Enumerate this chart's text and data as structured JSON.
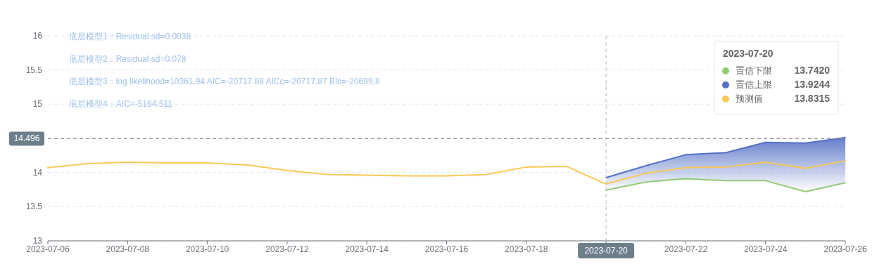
{
  "chart_data": {
    "type": "line",
    "x": [
      "2023-07-06",
      "2023-07-07",
      "2023-07-08",
      "2023-07-09",
      "2023-07-10",
      "2023-07-11",
      "2023-07-12",
      "2023-07-13",
      "2023-07-14",
      "2023-07-15",
      "2023-07-16",
      "2023-07-17",
      "2023-07-18",
      "2023-07-19",
      "2023-07-20",
      "2023-07-21",
      "2023-07-22",
      "2023-07-23",
      "2023-07-24",
      "2023-07-25",
      "2023-07-26"
    ],
    "series": [
      {
        "name": "置信下限",
        "color": "#91cc75",
        "x": [
          "2023-07-20",
          "2023-07-21",
          "2023-07-22",
          "2023-07-23",
          "2023-07-24",
          "2023-07-25",
          "2023-07-26"
        ],
        "values": [
          13.742,
          13.86,
          13.91,
          13.88,
          13.88,
          13.72,
          13.85
        ]
      },
      {
        "name": "置信上限",
        "color": "#5470c6",
        "x": [
          "2023-07-20",
          "2023-07-21",
          "2023-07-22",
          "2023-07-23",
          "2023-07-24",
          "2023-07-25",
          "2023-07-26"
        ],
        "values": [
          13.9244,
          14.1,
          14.26,
          14.29,
          14.44,
          14.43,
          14.51
        ],
        "lower": [
          13.742,
          13.86,
          13.91,
          13.88,
          13.88,
          13.72,
          13.85
        ],
        "upper": [
          13.9244,
          14.1,
          14.26,
          14.29,
          14.44,
          14.43,
          14.51
        ]
      },
      {
        "name": "预测值",
        "color": "#fac858",
        "values": [
          14.07,
          14.13,
          14.15,
          14.14,
          14.14,
          14.11,
          14.03,
          13.97,
          13.96,
          13.95,
          13.95,
          13.97,
          14.08,
          14.09,
          13.8315,
          13.99,
          14.07,
          14.08,
          14.15,
          14.06,
          14.17
        ]
      }
    ],
    "xlim": [
      "2023-07-06",
      "2023-07-26"
    ],
    "xticks": [
      "2023-07-06",
      "2023-07-08",
      "2023-07-10",
      "2023-07-12",
      "2023-07-14",
      "2023-07-16",
      "2023-07-18",
      {
        "value": "2023-07-20",
        "label": null
      },
      "2023-07-22",
      "2023-07-24",
      "2023-07-26"
    ],
    "ylim": [
      13,
      16
    ],
    "yticks": [
      13,
      13.5,
      14,
      {
        "value": 14.5,
        "label": null
      },
      15,
      15.5,
      16
    ],
    "grid": "y",
    "legend": "top right",
    "legend_title": "2023-07-20",
    "marker": "none",
    "ref_lines": [
      {
        "axis": "y",
        "value": 14.496,
        "label": "14.496",
        "line_style": "dashed",
        "color": "#888888"
      },
      {
        "axis": "x",
        "value": "2023-07-20",
        "label": "2023-07-20",
        "line_style": "dashed",
        "color": "#b8bcd0"
      }
    ],
    "annotations": [
      "底层模型1：Residual sd=0.0038",
      "底层模型2：Residual sd=0.078",
      "底层模型3：log likelihood=10361.94 AIC=-20717.88 AICc=-20717.87 BIc=-20699.8",
      "底层模型4：AIC=-5164.511",
      "13.7420",
      "13.9244",
      "13.8315"
    ]
  }
}
